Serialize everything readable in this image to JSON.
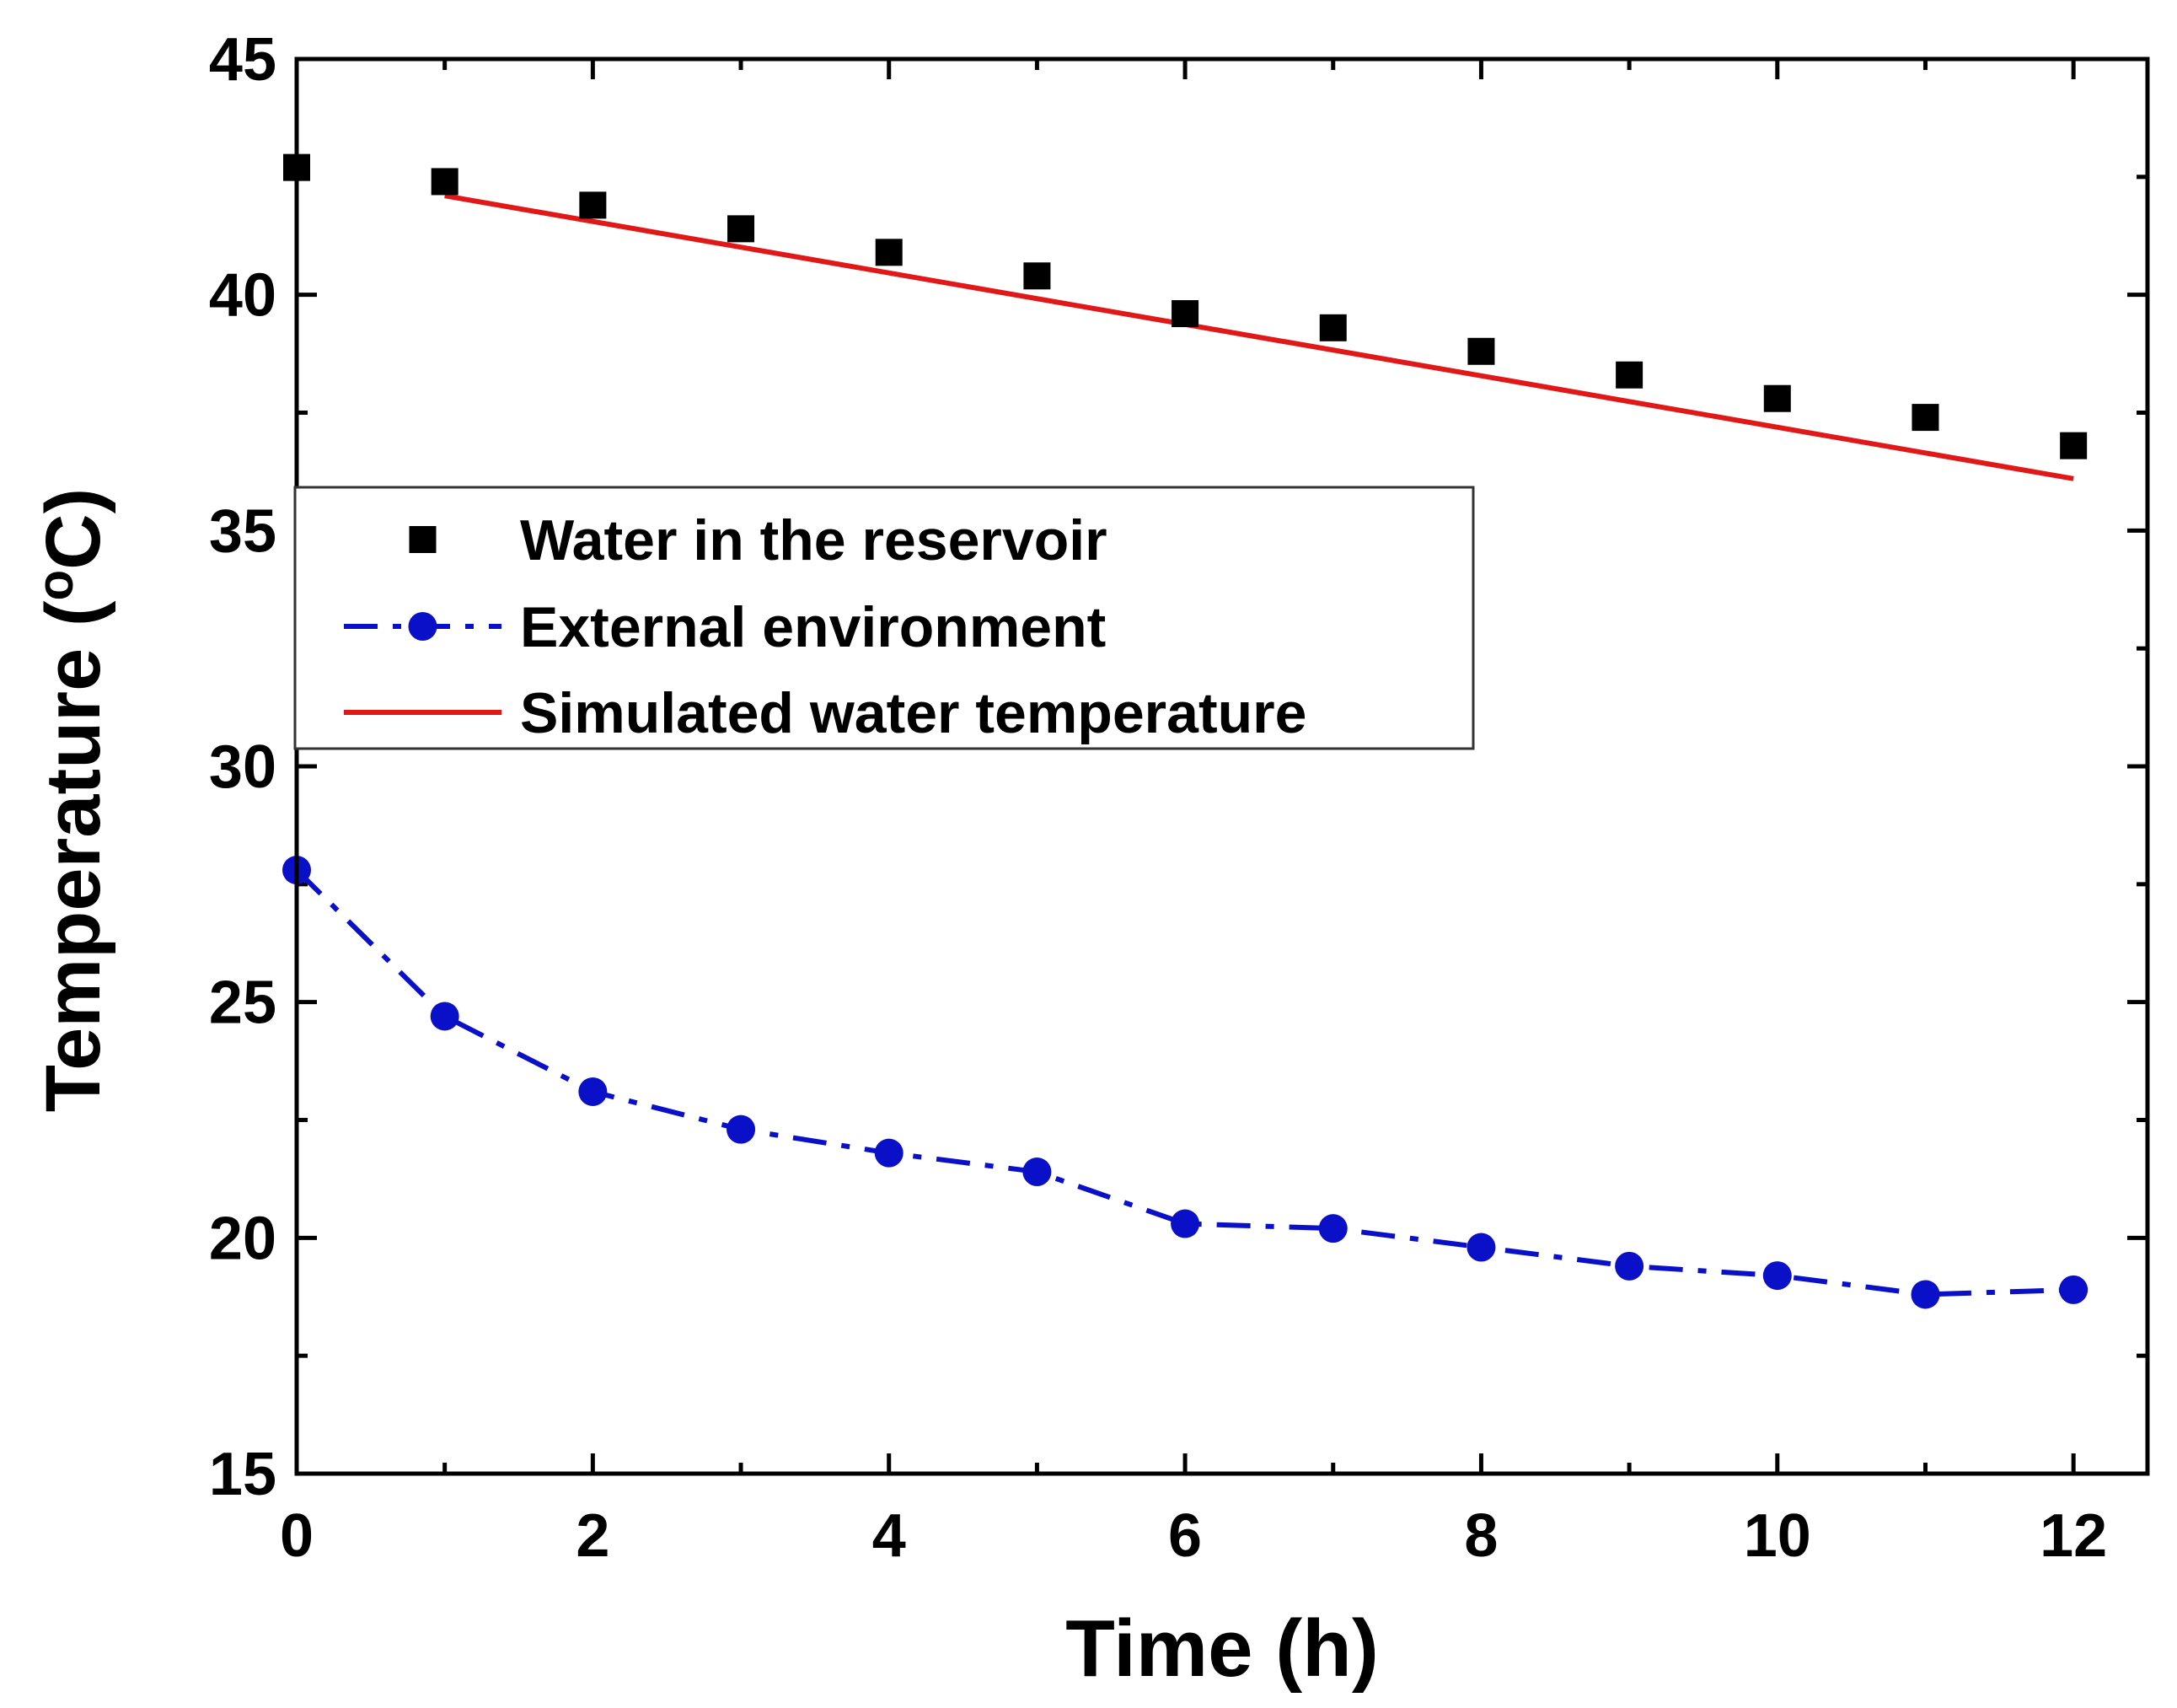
{
  "chart_data": {
    "type": "scatter",
    "title": "",
    "xlabel": "Time (h)",
    "ylabel": "Temperature (oC)",
    "ylabel_parts": {
      "prefix": "Temperature (",
      "superscript": "o",
      "suffix": "C)"
    },
    "xlim": [
      0,
      12.5
    ],
    "ylim": [
      15,
      45
    ],
    "xticks": [
      0,
      2,
      4,
      6,
      8,
      10,
      12
    ],
    "xtick_labels": [
      "0",
      "2",
      "4",
      "6",
      "8",
      "10",
      "12"
    ],
    "yticks": [
      15,
      20,
      25,
      30,
      35,
      40,
      45
    ],
    "ytick_labels": [
      "15",
      "20",
      "25",
      "30",
      "35",
      "40",
      "45"
    ],
    "grid": false,
    "legend_position": "middle-left",
    "series": [
      {
        "name": "Water in the reservoir",
        "style": "square-markers",
        "color": "#000000",
        "x": [
          0,
          1,
          2,
          3,
          4,
          5,
          6,
          7,
          8,
          9,
          10,
          11,
          12
        ],
        "y": [
          42.7,
          42.4,
          41.9,
          41.4,
          40.9,
          40.4,
          39.6,
          39.3,
          38.8,
          38.3,
          37.8,
          37.4,
          36.8
        ]
      },
      {
        "name": "External environment",
        "style": "dash-dot-circles",
        "color": "#0a10c8",
        "x": [
          0,
          1,
          2,
          3,
          4,
          5,
          6,
          7,
          8,
          9,
          10,
          11,
          12
        ],
        "y": [
          27.8,
          24.7,
          23.1,
          22.3,
          21.8,
          21.4,
          20.3,
          20.2,
          19.8,
          19.4,
          19.2,
          18.8,
          18.9
        ]
      },
      {
        "name": "Simulated water temperature",
        "style": "solid-line",
        "color": "#e01818",
        "x": [
          1,
          12
        ],
        "y": [
          42.1,
          36.1
        ]
      }
    ]
  }
}
